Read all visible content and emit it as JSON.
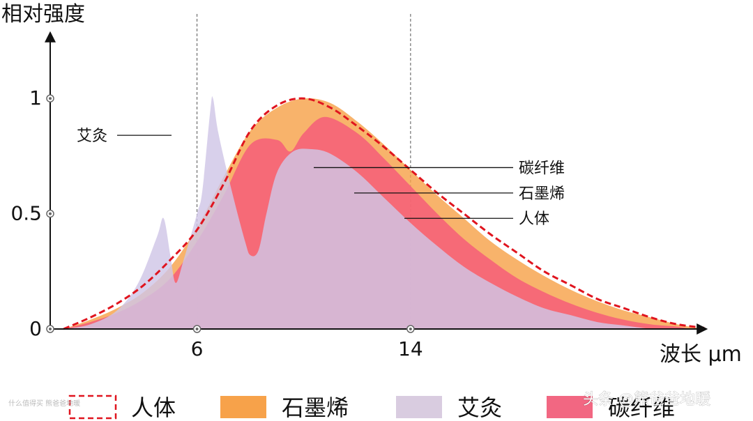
{
  "chart_data": {
    "type": "area",
    "ylabel": "相对强度",
    "xlabel": "波长 μm",
    "y_ticks": [
      {
        "value": 0,
        "label": "0"
      },
      {
        "value": 0.5,
        "label": "0.5"
      },
      {
        "value": 1,
        "label": "1"
      }
    ],
    "x_ticks": [
      {
        "value": 6,
        "label": "6"
      },
      {
        "value": 14,
        "label": "14"
      }
    ],
    "xlim": [
      0.5,
      25
    ],
    "ylim": [
      0,
      1.3
    ],
    "reference_lines_x": [
      6,
      14
    ],
    "grid": false,
    "legend_position": "bottom",
    "series": [
      {
        "name": "石墨烯",
        "color": "#f7a24a",
        "style": "area",
        "points": [
          [
            1,
            0
          ],
          [
            2,
            0.04
          ],
          [
            3,
            0.09
          ],
          [
            4,
            0.16
          ],
          [
            5,
            0.27
          ],
          [
            6,
            0.44
          ],
          [
            7,
            0.66
          ],
          [
            8,
            0.86
          ],
          [
            9,
            0.96
          ],
          [
            10,
            1.0
          ],
          [
            11,
            0.98
          ],
          [
            12,
            0.9
          ],
          [
            13,
            0.8
          ],
          [
            14,
            0.69
          ],
          [
            15,
            0.58
          ],
          [
            16,
            0.48
          ],
          [
            17,
            0.38
          ],
          [
            18,
            0.3
          ],
          [
            19,
            0.23
          ],
          [
            20,
            0.17
          ],
          [
            21,
            0.12
          ],
          [
            22,
            0.08
          ],
          [
            23,
            0.05
          ],
          [
            24,
            0.02
          ],
          [
            25,
            0
          ]
        ]
      },
      {
        "name": "碳纤维",
        "color": "#f55a7a",
        "style": "area",
        "points": [
          [
            1,
            0
          ],
          [
            2,
            0.03
          ],
          [
            3,
            0.07
          ],
          [
            4,
            0.13
          ],
          [
            5,
            0.22
          ],
          [
            6,
            0.38
          ],
          [
            7,
            0.58
          ],
          [
            8,
            0.8
          ],
          [
            9,
            0.82
          ],
          [
            9.5,
            0.77
          ],
          [
            10,
            0.85
          ],
          [
            10.8,
            0.92
          ],
          [
            12,
            0.85
          ],
          [
            13,
            0.74
          ],
          [
            14,
            0.62
          ],
          [
            15,
            0.5
          ],
          [
            16,
            0.39
          ],
          [
            17,
            0.3
          ],
          [
            18,
            0.22
          ],
          [
            19,
            0.16
          ],
          [
            20,
            0.11
          ],
          [
            21,
            0.07
          ],
          [
            22,
            0.04
          ],
          [
            23,
            0.02
          ],
          [
            24,
            0.01
          ],
          [
            24.5,
            0
          ]
        ]
      },
      {
        "name": "艾灸",
        "color": "#cfc6e6",
        "style": "area",
        "points": [
          [
            1,
            0
          ],
          [
            2,
            0.02
          ],
          [
            3,
            0.08
          ],
          [
            3.8,
            0.2
          ],
          [
            4.5,
            0.4
          ],
          [
            4.75,
            0.48
          ],
          [
            5,
            0.32
          ],
          [
            5.2,
            0.2
          ],
          [
            5.5,
            0.3
          ],
          [
            6,
            0.5
          ],
          [
            6.2,
            0.6
          ],
          [
            6.5,
            0.95
          ],
          [
            6.6,
            1.0
          ],
          [
            6.8,
            0.85
          ],
          [
            7.3,
            0.6
          ],
          [
            7.8,
            0.38
          ],
          [
            8,
            0.32
          ],
          [
            8.3,
            0.34
          ],
          [
            8.6,
            0.5
          ],
          [
            9,
            0.68
          ],
          [
            9.6,
            0.77
          ],
          [
            10.3,
            0.78
          ],
          [
            11,
            0.76
          ],
          [
            12,
            0.68
          ],
          [
            13,
            0.57
          ],
          [
            14,
            0.46
          ],
          [
            15,
            0.36
          ],
          [
            16,
            0.27
          ],
          [
            17,
            0.2
          ],
          [
            18,
            0.14
          ],
          [
            19,
            0.09
          ],
          [
            20,
            0.06
          ],
          [
            21,
            0.03
          ],
          [
            22,
            0.015
          ],
          [
            23,
            0
          ]
        ]
      },
      {
        "name": "人体",
        "color": "#e0141e",
        "style": "dashed-line",
        "points": [
          [
            1,
            0
          ],
          [
            2,
            0.05
          ],
          [
            3,
            0.11
          ],
          [
            4,
            0.19
          ],
          [
            5,
            0.3
          ],
          [
            6,
            0.43
          ],
          [
            7,
            0.63
          ],
          [
            8,
            0.86
          ],
          [
            9,
            0.97
          ],
          [
            10,
            1.0
          ],
          [
            11,
            0.96
          ],
          [
            12,
            0.88
          ],
          [
            13,
            0.79
          ],
          [
            14,
            0.69
          ],
          [
            15,
            0.59
          ],
          [
            16,
            0.5
          ],
          [
            17,
            0.41
          ],
          [
            18,
            0.33
          ],
          [
            19,
            0.25
          ],
          [
            20,
            0.19
          ],
          [
            21,
            0.13
          ],
          [
            22,
            0.09
          ],
          [
            23,
            0.05
          ],
          [
            24,
            0.02
          ],
          [
            25,
            0.005
          ]
        ]
      }
    ],
    "annotations": [
      {
        "text": "艾灸",
        "series": "艾灸",
        "x": 6.5,
        "y": 0.84
      },
      {
        "text": "碳纤维",
        "series": "碳纤维",
        "x": 11,
        "y": 0.7
      },
      {
        "text": "石墨烯",
        "series": "石墨烯",
        "x": 13.2,
        "y": 0.59
      },
      {
        "text": "人体",
        "series": "人体",
        "x": 14.8,
        "y": 0.48
      }
    ]
  },
  "legend": [
    {
      "label": "人体",
      "color": "#e0141e",
      "style": "dashed"
    },
    {
      "label": "石墨烯",
      "color": "#f7a24a",
      "style": "solid"
    },
    {
      "label": "艾灸",
      "color": "#d9cce0",
      "style": "solid"
    },
    {
      "label": "碳纤维",
      "color": "#f26782",
      "style": "solid"
    }
  ],
  "watermark": {
    "main": "头条 @熊爸爸地暖",
    "small": "什么值得买 熊爸爸地暖"
  }
}
